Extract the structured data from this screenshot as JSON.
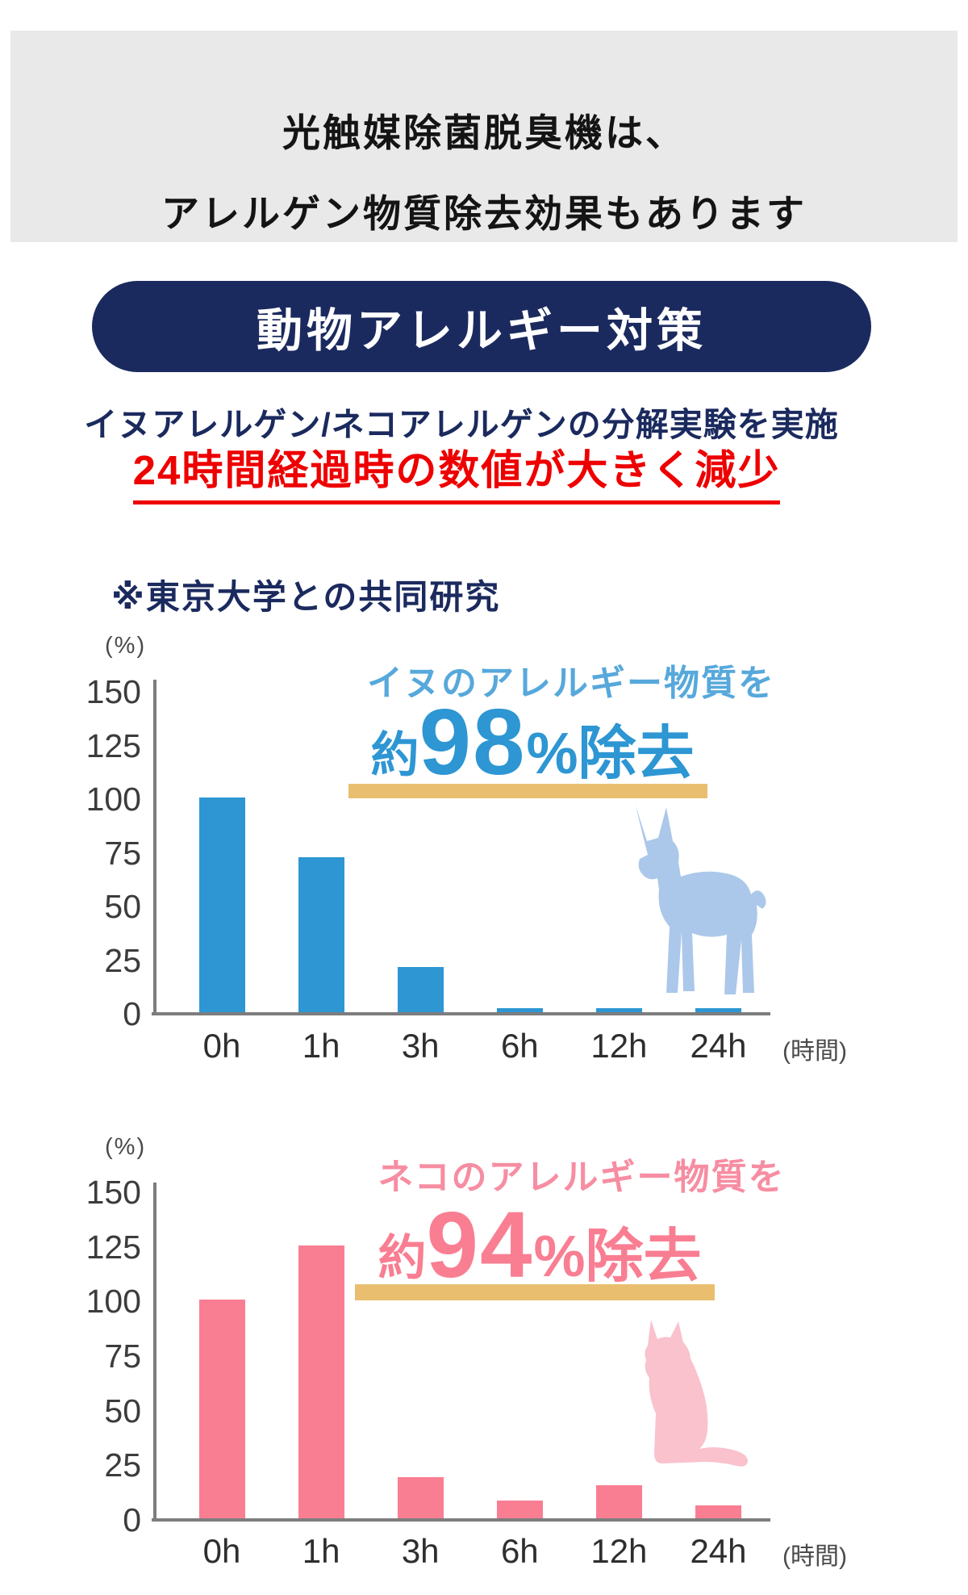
{
  "header": {
    "line1": "光触媒除菌脱臭機は、",
    "line2": "アレルゲン物質除去効果もあります"
  },
  "badge": {
    "label": "動物アレルギー対策"
  },
  "subtitle": "イヌアレルゲン/ネコアレルゲンの分解実験を実施",
  "highlight": "24時間経過時の数値が大きく減少",
  "research_note": "※東京大学との共同研究",
  "colors": {
    "navy": "#1b2a5e",
    "red": "#ee0000",
    "gray_banner": "#e9e9e9",
    "gold": "#e9bf6f",
    "axis": "#7d7d7d"
  },
  "chart_data": [
    {
      "type": "bar",
      "animal": "dog",
      "title_lead": "イヌのアレルギー物質を",
      "headline": {
        "prefix": "約",
        "value": "98",
        "suffix": "%除去"
      },
      "categories": [
        "0h",
        "1h",
        "3h",
        "6h",
        "12h",
        "24h"
      ],
      "values": [
        100,
        72,
        21,
        2,
        2,
        2
      ],
      "ylabel_unit": "(%)",
      "xlabel_unit": "(時間)",
      "yticks": [
        0,
        25,
        50,
        75,
        100,
        125,
        150
      ],
      "ylim": [
        0,
        150
      ],
      "grid": false,
      "colors": {
        "bar": "#2d96d3",
        "title": "#57a8db",
        "headline": "#2d96d3",
        "underline": "#e9bf6f",
        "animal": "#abc8ea"
      }
    },
    {
      "type": "bar",
      "animal": "cat",
      "title_lead": "ネコのアレルギー物質を",
      "headline": {
        "prefix": "約",
        "value": "94",
        "suffix": "%除去"
      },
      "categories": [
        "0h",
        "1h",
        "3h",
        "6h",
        "12h",
        "24h"
      ],
      "values": [
        100,
        125,
        19,
        8,
        15,
        6
      ],
      "ylabel_unit": "(%)",
      "xlabel_unit": "(時間)",
      "yticks": [
        0,
        25,
        50,
        75,
        100,
        125,
        150
      ],
      "ylim": [
        0,
        150
      ],
      "grid": false,
      "colors": {
        "bar": "#f97e92",
        "title": "#f78da2",
        "headline": "#f97e92",
        "underline": "#e9bf6f",
        "animal": "#f9c2cd"
      }
    }
  ]
}
